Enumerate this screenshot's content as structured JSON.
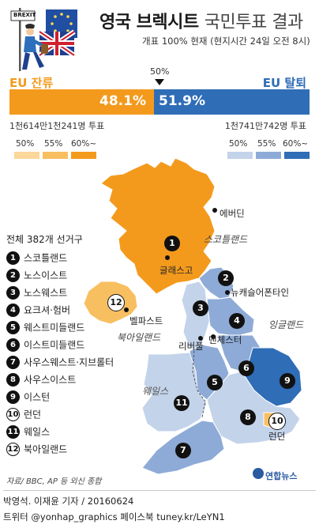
{
  "logo": {
    "sign_text": "BREXIT"
  },
  "title": {
    "main": "영국 브렉시트",
    "sub": "국민투표 결과"
  },
  "subtitle": "개표 100% 현재 (현지시간 24일 오전 8시)",
  "sides": {
    "remain": {
      "label": "EU 잔류",
      "percent": "48.1%",
      "percent_value": 48.1,
      "votes": "1천614만1천241명 투표",
      "color": "#f39a1d"
    },
    "leave": {
      "label": "EU 탈퇴",
      "percent": "51.9%",
      "percent_value": 51.9,
      "votes": "1천741만742명 투표",
      "color": "#2f6db6"
    }
  },
  "midline_label": "50%",
  "legend": {
    "remain": [
      {
        "label": "50%",
        "color": "#fbd79a"
      },
      {
        "label": "55%",
        "color": "#f8bf61"
      },
      {
        "label": "60%~",
        "color": "#f39a1d"
      }
    ],
    "leave": [
      {
        "label": "50%",
        "color": "#c3d3ea"
      },
      {
        "label": "55%",
        "color": "#8eabd7"
      },
      {
        "label": "60%~",
        "color": "#2f6db6"
      }
    ]
  },
  "map_labels": {
    "edinburgh": "에버딘",
    "scotland": "스코틀랜드",
    "glasgow": "글래스고",
    "newcastle": "뉴캐슬어폰타인",
    "england": "잉글랜드",
    "belfast": "벨파스트",
    "northern_ireland": "북아일랜드",
    "liverpool": "리버풀",
    "manchester": "맨체스터",
    "wales": "웨일스",
    "london": "런던"
  },
  "list_title": "전체 382개 선거구",
  "regions": [
    {
      "num": "1",
      "name": "스코틀랜드"
    },
    {
      "num": "2",
      "name": "노스이스트"
    },
    {
      "num": "3",
      "name": "노스웨스트"
    },
    {
      "num": "4",
      "name": "요크셔·험버"
    },
    {
      "num": "5",
      "name": "웨스트미들랜드"
    },
    {
      "num": "6",
      "name": "이스트미들랜드"
    },
    {
      "num": "7",
      "name": "사우스웨스트·지브롤터"
    },
    {
      "num": "8",
      "name": "사우스이스트"
    },
    {
      "num": "9",
      "name": "이스턴"
    },
    {
      "num": "10",
      "name": "런던"
    },
    {
      "num": "11",
      "name": "웨일스"
    },
    {
      "num": "12",
      "name": "북아일랜드"
    }
  ],
  "source": "자료/ BBC, AP 등 외신 종합",
  "agency": "연합뉴스",
  "footer": {
    "byline": "박영석. 이재윤 기자 / 20160624",
    "social": "트위터 @yonhap_graphics  페이스북 tuney.kr/LeYN1"
  }
}
